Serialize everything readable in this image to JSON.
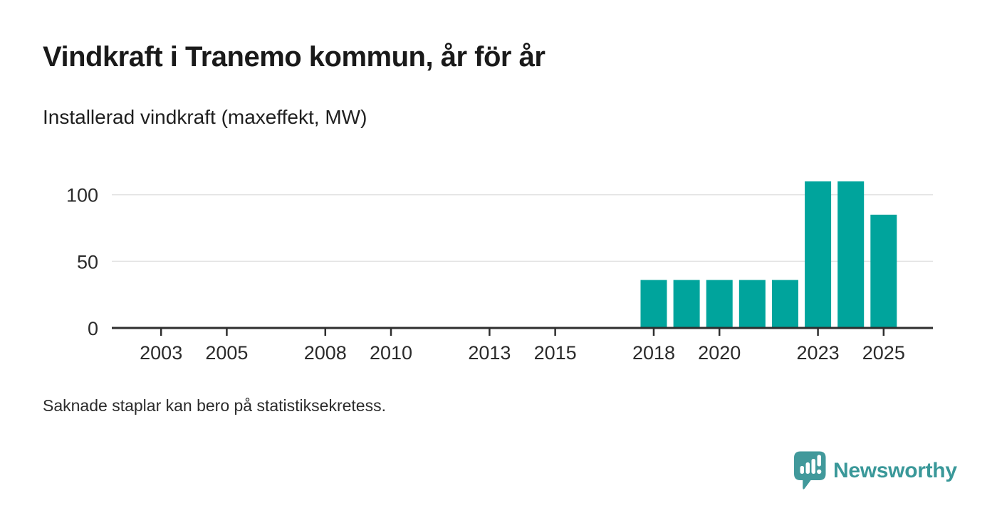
{
  "header": {
    "title": "Vindkraft i Tranemo kommun, år för år",
    "subtitle": "Installerad vindkraft (maxeffekt, MW)"
  },
  "footnote": "Saknade staplar kan bero på statistiksekretess.",
  "brand": {
    "name": "Newsworthy",
    "icon": "newsworthy-speech-bubble-chart-icon",
    "icon_color": "#41999b",
    "text_color": "#3a9899"
  },
  "chart_data": {
    "type": "bar",
    "title": "Vindkraft i Tranemo kommun, år för år",
    "subtitle": "Installerad vindkraft (maxeffekt, MW)",
    "unit": "MW",
    "ylabel": "Installerad vindkraft (maxeffekt, MW)",
    "xlabel": "",
    "categories": [
      2018,
      2019,
      2020,
      2021,
      2022,
      2023,
      2024,
      2025
    ],
    "values": [
      36,
      36,
      36,
      36,
      36,
      110,
      110,
      85
    ],
    "x_ticks": [
      2003,
      2005,
      2008,
      2010,
      2013,
      2015,
      2018,
      2020,
      2023,
      2025
    ],
    "y_ticks": [
      0,
      50,
      100
    ],
    "y_gridlines": [
      50,
      100
    ],
    "xlim": [
      2001.5,
      2026.5
    ],
    "ylim": [
      0,
      118
    ],
    "legend": "none",
    "grid": "horizontal-only",
    "missing_data_note": "Bars for years before 2018 are absent (statistiksekretess)",
    "bar_color": "#00a49c",
    "axis_color": "#2e2e2e",
    "grid_color": "#e3e3e3",
    "tick_label_color": "#2b2b2b"
  }
}
